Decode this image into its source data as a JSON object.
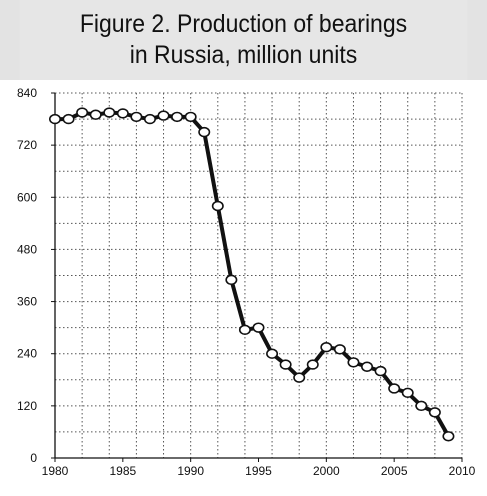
{
  "title": {
    "line1": "Figure 2. Production of bearings",
    "line2": "in Russia, million units"
  },
  "chart_data": {
    "type": "line",
    "title": "Figure 2. Production of bearings in Russia, million units",
    "xlabel": "",
    "ylabel": "",
    "xlim": [
      1980,
      2010
    ],
    "ylim": [
      0,
      840
    ],
    "x_ticks": [
      1980,
      1985,
      1990,
      1995,
      2000,
      2005,
      2010
    ],
    "y_ticks": [
      0,
      120,
      240,
      360,
      480,
      600,
      720,
      840
    ],
    "x_grid_step": 2,
    "y_grid_step": 60,
    "grid": true,
    "legend": "none",
    "line_color": "#111111",
    "marker": "open-circle",
    "series": [
      {
        "x": [
          1980,
          1981,
          1982,
          1983,
          1984,
          1985,
          1986,
          1987,
          1988,
          1989,
          1990,
          1991,
          1992,
          1993,
          1994,
          1995,
          1996,
          1997,
          1998,
          1999,
          2000,
          2001,
          2002,
          2003,
          2004,
          2005,
          2006,
          2007,
          2008,
          2009
        ],
        "values": [
          780,
          780,
          795,
          790,
          795,
          793,
          785,
          780,
          788,
          785,
          785,
          750,
          580,
          410,
          295,
          300,
          240,
          215,
          185,
          215,
          255,
          250,
          220,
          210,
          200,
          160,
          150,
          120,
          105,
          50
        ]
      }
    ]
  }
}
